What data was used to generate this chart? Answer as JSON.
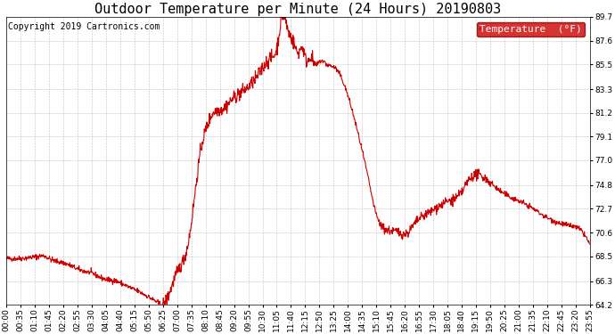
{
  "title": "Outdoor Temperature per Minute (24 Hours) 20190803",
  "copyright_text": "Copyright 2019 Cartronics.com",
  "legend_label": "Temperature  (°F)",
  "line_color": "#cc0000",
  "background_color": "#ffffff",
  "grid_color": "#bbbbbb",
  "ylim": [
    64.2,
    89.7
  ],
  "yticks": [
    64.2,
    66.3,
    68.5,
    70.6,
    72.7,
    74.8,
    77.0,
    79.1,
    81.2,
    83.3,
    85.5,
    87.6,
    89.7
  ],
  "xtick_labels": [
    "00:00",
    "00:35",
    "01:10",
    "01:45",
    "02:20",
    "02:55",
    "03:30",
    "04:05",
    "04:40",
    "05:15",
    "05:50",
    "06:25",
    "07:00",
    "07:35",
    "08:10",
    "08:45",
    "09:20",
    "09:55",
    "10:30",
    "11:05",
    "11:40",
    "12:15",
    "12:50",
    "13:25",
    "14:00",
    "14:35",
    "15:10",
    "15:45",
    "16:20",
    "16:55",
    "17:30",
    "18:05",
    "18:40",
    "19:15",
    "19:50",
    "20:25",
    "21:00",
    "21:35",
    "22:10",
    "22:45",
    "23:20",
    "23:55"
  ],
  "title_fontsize": 11,
  "copyright_fontsize": 7,
  "legend_fontsize": 8,
  "tick_fontsize": 6.5,
  "line_width": 0.8,
  "figwidth": 6.9,
  "figheight": 3.75,
  "dpi": 100
}
